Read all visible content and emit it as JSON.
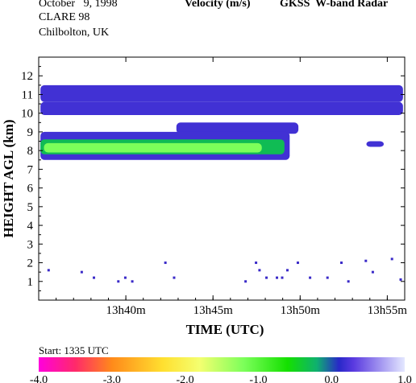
{
  "header": {
    "date": "October   9, 1998",
    "campaign": "CLARE 98",
    "site": "Chilbolton, UK",
    "product": "Velocity (m/s)",
    "instrument": "GKSS  W-band Radar"
  },
  "start_label": "Start: 1335 UTC",
  "chart_data": {
    "type": "heatmap",
    "title": "Velocity (m/s)",
    "xlabel": "TIME (UTC)",
    "ylabel": "HEIGHT AGL (km)",
    "x_ticks": [
      "13h40m",
      "13h45m",
      "13h50m",
      "13h55m"
    ],
    "y_ticks": [
      1,
      2,
      3,
      4,
      5,
      6,
      7,
      8,
      9,
      10,
      11,
      12
    ],
    "xlim": [
      "13h35m",
      "13h56m"
    ],
    "ylim": [
      0,
      13
    ],
    "colorbar": {
      "ticks": [
        "-4.0",
        "-3.0",
        "-2.0",
        "-1.0",
        "0.0",
        "1.0"
      ],
      "range": [
        -4,
        1
      ],
      "stops": [
        {
          "v": -4.0,
          "color": "#ff00dd"
        },
        {
          "v": -3.5,
          "color": "#ff2a6a"
        },
        {
          "v": -3.0,
          "color": "#ff8a1a"
        },
        {
          "v": -2.3,
          "color": "#ffe030"
        },
        {
          "v": -1.8,
          "color": "#f4ff70"
        },
        {
          "v": -1.2,
          "color": "#7cff5a"
        },
        {
          "v": -0.6,
          "color": "#14e000"
        },
        {
          "v": -0.2,
          "color": "#0fb070"
        },
        {
          "v": 0.1,
          "color": "#2828c8"
        },
        {
          "v": 0.3,
          "color": "#5a3ae0"
        },
        {
          "v": 1.0,
          "color": "#e4e8ff"
        }
      ]
    },
    "regions": [
      {
        "label": "upper cirrus layer",
        "t0": 35.1,
        "t1": 55.9,
        "z0": 10.6,
        "z1": 11.5,
        "velocity": 0.2
      },
      {
        "label": "upper cirrus layer lower fringe",
        "t0": 35.1,
        "t1": 55.9,
        "z0": 9.9,
        "z1": 10.6,
        "velocity": 0.2
      },
      {
        "label": "mid-level cloud",
        "t0": 42.9,
        "t1": 49.9,
        "z0": 8.9,
        "z1": 9.5,
        "velocity": 0.2
      },
      {
        "label": "thick cloud outer",
        "t0": 35.1,
        "t1": 49.4,
        "z0": 7.5,
        "z1": 9.0,
        "velocity": 0.2
      },
      {
        "label": "thick cloud core",
        "t0": 35.1,
        "t1": 49.1,
        "z0": 7.8,
        "z1": 8.6,
        "velocity": -0.3
      },
      {
        "label": "thick cloud strong downdraft",
        "t0": 35.3,
        "t1": 47.8,
        "z0": 7.9,
        "z1": 8.4,
        "velocity": -1.2
      },
      {
        "label": "small echo",
        "t0": 53.8,
        "t1": 54.8,
        "z0": 8.2,
        "z1": 8.5,
        "velocity": 0.2
      }
    ],
    "speckles": [
      [
        35.5,
        1.6
      ],
      [
        37.4,
        1.5
      ],
      [
        38.1,
        1.2
      ],
      [
        39.5,
        1.0
      ],
      [
        39.9,
        1.2
      ],
      [
        40.3,
        1.0
      ],
      [
        42.2,
        2.0
      ],
      [
        42.7,
        1.2
      ],
      [
        47.4,
        2.0
      ],
      [
        47.6,
        1.6
      ],
      [
        48.0,
        1.2
      ],
      [
        48.6,
        1.2
      ],
      [
        48.9,
        1.2
      ],
      [
        49.8,
        2.0
      ],
      [
        50.5,
        1.2
      ],
      [
        51.5,
        1.2
      ],
      [
        52.3,
        2.0
      ],
      [
        52.7,
        1.0
      ],
      [
        53.7,
        2.1
      ],
      [
        54.1,
        1.5
      ],
      [
        55.2,
        2.2
      ],
      [
        55.7,
        1.1
      ],
      [
        46.8,
        1.0
      ],
      [
        49.2,
        1.6
      ]
    ]
  }
}
